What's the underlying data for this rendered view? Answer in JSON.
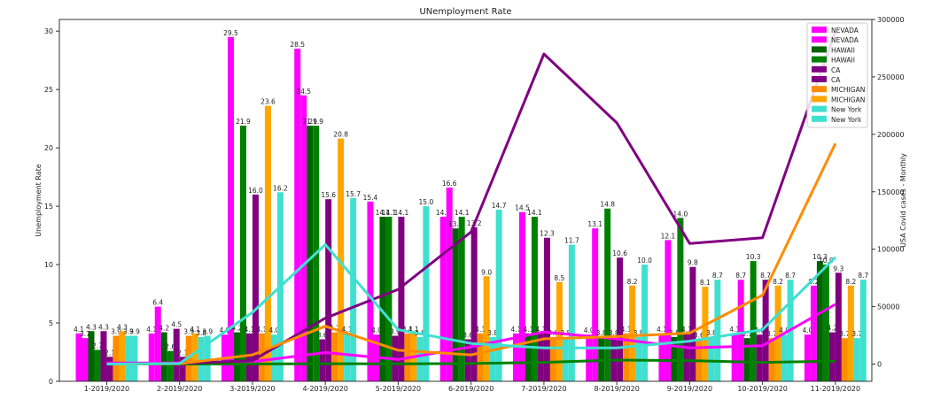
{
  "chart_data": {
    "type": "bar",
    "title": "UNemployment Rate",
    "xlabel": "",
    "ylabel": "Unemployment Rate",
    "y2label": "USA Covid cases - Monthly",
    "ylim": [
      0,
      31
    ],
    "y2lim": [
      -15000,
      300000
    ],
    "y_ticks": [
      0,
      5,
      10,
      15,
      20,
      25,
      30
    ],
    "y2_ticks": [
      0,
      50000,
      100000,
      150000,
      200000,
      250000,
      300000
    ],
    "y2_tick_labels": [
      "0",
      "50000",
      "100000",
      "150000",
      "200000",
      "250000",
      "300000"
    ],
    "categories": [
      "1-2019/2020",
      "2-2019/2020",
      "3-2019/2020",
      "4-2019/2020",
      "5-2019/2020",
      "6-2019/2020",
      "7-2019/2020",
      "8-2019/2020",
      "9-2019/2020",
      "10-2019/2020",
      "11-2019/2020"
    ],
    "grid": false,
    "legend_position": "top-right",
    "bar_series": [
      {
        "name": "NEVADA",
        "color": "#ff00ff",
        "values": [
          4.1,
          4.1,
          4.0,
          28.5,
          15.4,
          14.1,
          4.1,
          4.0,
          4.1,
          4.1,
          4.0
        ]
      },
      {
        "name": "NEVADA",
        "color": "#ff00ff",
        "values": [
          3.7,
          6.4,
          29.5,
          24.5,
          4.0,
          16.6,
          14.5,
          13.1,
          12.1,
          8.7,
          8.2
        ]
      },
      {
        "name": "HAWAII",
        "color": "#006400",
        "values": [
          4.3,
          4.2,
          4.2,
          21.9,
          14.1,
          13.1,
          4.1,
          3.8,
          3.8,
          3.7,
          10.3
        ]
      },
      {
        "name": "HAWAII",
        "color": "#008000",
        "values": [
          2.7,
          2.6,
          21.9,
          21.9,
          14.1,
          14.1,
          14.1,
          14.8,
          14.0,
          10.3,
          10.0
        ]
      },
      {
        "name": "CA",
        "color": "#800080",
        "values": [
          4.3,
          4.5,
          4.1,
          3.6,
          3.9,
          3.6,
          4.1,
          3.8,
          4.1,
          4.0,
          4.2
        ]
      },
      {
        "name": "CA",
        "color": "#800080",
        "values": [
          2.1,
          2.1,
          16.0,
          15.6,
          14.1,
          13.2,
          12.3,
          10.6,
          9.8,
          8.7,
          9.3
        ]
      },
      {
        "name": "MICHIGAN",
        "color": "#ff8c00",
        "values": [
          3.9,
          3.9,
          4.1,
          4.2,
          4.1,
          4.1,
          3.8,
          4.1,
          3.6,
          3.7,
          3.7
        ]
      },
      {
        "name": "MICHIGAN",
        "color": "#ffa500",
        "values": [
          4.3,
          4.1,
          23.6,
          20.8,
          4.1,
          9.0,
          8.5,
          8.2,
          8.1,
          8.2,
          8.2
        ]
      },
      {
        "name": "New York",
        "color": "#40e0d0",
        "values": [
          3.9,
          3.8,
          4.0,
          4.1,
          3.8,
          3.8,
          3.8,
          3.8,
          3.8,
          4.0,
          3.7
        ]
      },
      {
        "name": "New York",
        "color": "#40e0d0",
        "values": [
          3.9,
          3.9,
          16.2,
          15.7,
          15.0,
          14.7,
          11.7,
          10.0,
          8.7,
          8.7,
          8.7
        ]
      }
    ],
    "line_series": [
      {
        "name": "NEVADA",
        "color": "#ff00ff",
        "values": [
          1000,
          1000,
          2000,
          10000,
          4000,
          15000,
          28000,
          22000,
          14000,
          16000,
          52000
        ]
      },
      {
        "name": "HAWAII",
        "color": "#008000",
        "values": [
          0,
          0,
          100,
          300,
          200,
          500,
          1500,
          3500,
          3000,
          1500,
          2500
        ]
      },
      {
        "name": "CA",
        "color": "#800080",
        "values": [
          0,
          500,
          3000,
          40000,
          65000,
          115000,
          270000,
          210000,
          105000,
          110000,
          290000
        ]
      },
      {
        "name": "MICHIGAN",
        "color": "#ff8c00",
        "values": [
          0,
          300,
          8000,
          33000,
          12000,
          8000,
          22000,
          24000,
          27000,
          60000,
          192000
        ]
      },
      {
        "name": "New York",
        "color": "#40e0d0",
        "values": [
          0,
          500,
          45000,
          104000,
          30000,
          18000,
          14000,
          14000,
          20000,
          30000,
          93000
        ]
      }
    ]
  }
}
